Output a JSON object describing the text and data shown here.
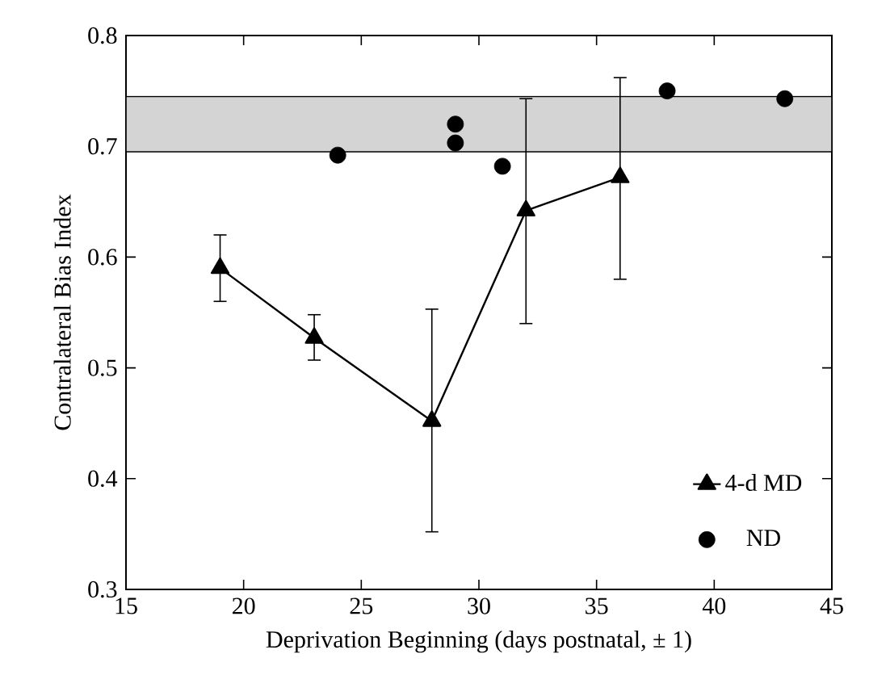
{
  "chart_data": {
    "type": "line",
    "xlabel": "Deprivation Beginning (days postnatal, ± 1)",
    "ylabel": "Contralateral Bias Index",
    "xlim": [
      15,
      45
    ],
    "xticks": [
      15,
      20,
      25,
      30,
      35,
      40,
      45
    ],
    "ylim": [
      0.3,
      0.8
    ],
    "yticks": [
      0.3,
      0.4,
      0.5,
      0.6,
      0.7,
      0.8
    ],
    "legend": "bottom right",
    "bands": [
      {
        "axis": "y",
        "from": 0.695,
        "to": 0.745,
        "color": "#d4d4d4"
      }
    ],
    "series": [
      {
        "name": "4-d MD",
        "marker": "triangle",
        "color": "#000000",
        "x": [
          19,
          23,
          28,
          32,
          36
        ],
        "values": [
          0.59,
          0.527,
          0.452,
          0.642,
          0.672
        ],
        "errors": [
          [
            0.56,
            0.62
          ],
          [
            0.507,
            0.548
          ],
          [
            0.352,
            0.553
          ],
          [
            0.54,
            0.743
          ],
          [
            0.58,
            0.762
          ]
        ]
      },
      {
        "name": "ND",
        "type": "scatter",
        "marker": "circle",
        "color": "#000000",
        "x": [
          24,
          29,
          29,
          31,
          38,
          43
        ],
        "values": [
          0.692,
          0.72,
          0.703,
          0.682,
          0.75,
          0.743
        ]
      }
    ]
  }
}
